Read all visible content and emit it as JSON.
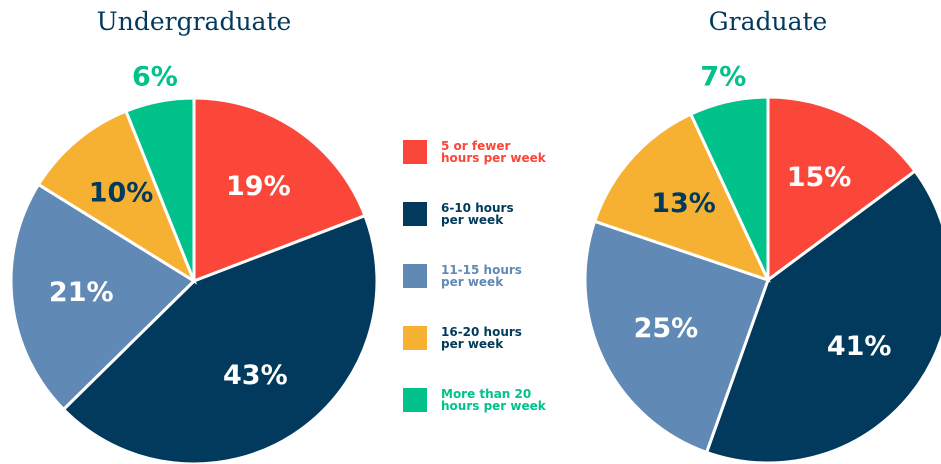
{
  "chart_data": [
    {
      "type": "pie",
      "title": "Undergraduate",
      "categories": [
        "5 or fewer\nhours per week",
        "6-10 hours\nper week",
        "11-15 hours\nper week",
        "16-20 hours\nper week",
        "More than 20\nhours per week"
      ],
      "colors": [
        "#fb4739",
        "#013a5c",
        "#6189b5",
        "#f6b133",
        "#00c28a"
      ],
      "legend_text_colors": [
        "#fb4739",
        "#013a5c",
        "#6189b5",
        "#013a5c",
        "#00c28a"
      ],
      "label_colors": [
        "#ffffff",
        "#ffffff",
        "#ffffff",
        "#013a5c",
        "#00c28a"
      ],
      "values": [
        19,
        43,
        21,
        10,
        6
      ],
      "value_labels": [
        "19%",
        "43%",
        "21%",
        "10%",
        "6%"
      ]
    },
    {
      "type": "pie",
      "title": "Graduate",
      "values": [
        15,
        41,
        25,
        13,
        7
      ],
      "value_labels": [
        "15%",
        "41%",
        "25%",
        "13%",
        "7%"
      ]
    }
  ]
}
